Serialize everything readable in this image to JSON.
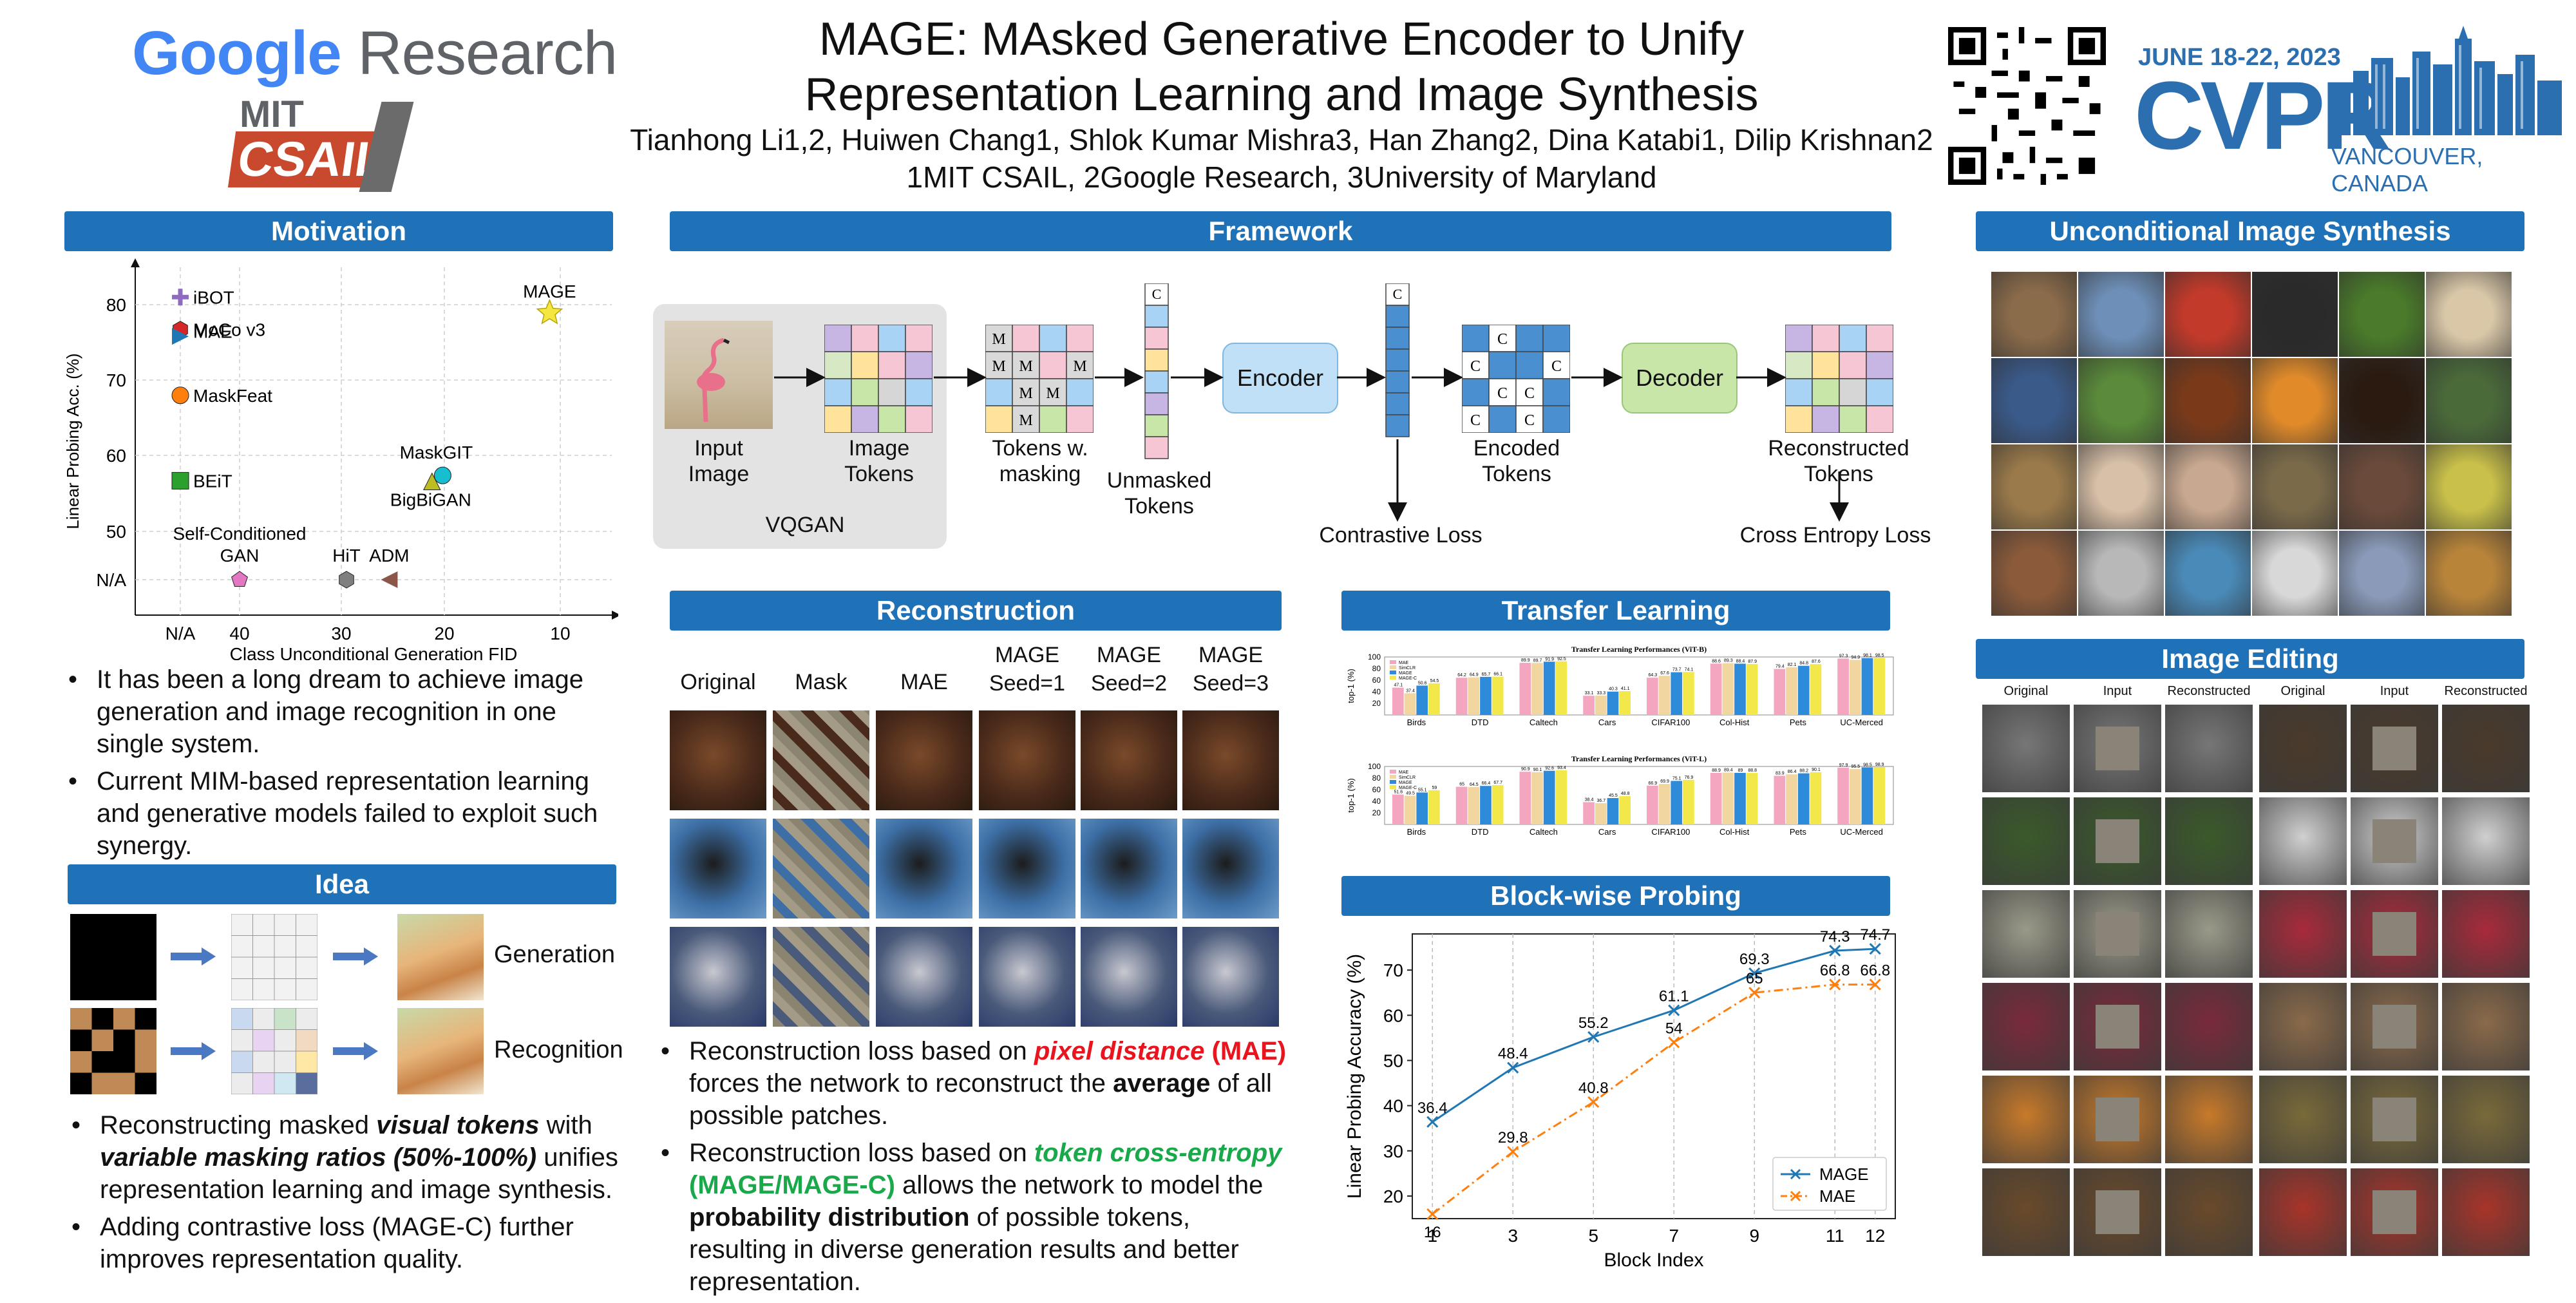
{
  "header": {
    "logo_google": "Google",
    "logo_research": "Research",
    "logo_mit": "MIT",
    "logo_csail": "CSAIL",
    "title_line1": "MAGE: MAsked Generative Encoder to Unify",
    "title_line2": "Representation Learning and Image Synthesis",
    "authors": "Tianhong Li1,2, Huiwen Chang1, Shlok Kumar Mishra3, Han Zhang2, Dina Katabi1, Dilip Krishnan2",
    "affiliations": "1MIT CSAIL, 2Google Research, 3University of Maryland",
    "cvpr_dates": "JUNE 18-22, 2023",
    "cvpr_name": "CVPR",
    "cvpr_location": "VANCOUVER, CANADA"
  },
  "sections": {
    "motivation": "Motivation",
    "idea": "Idea",
    "framework": "Framework",
    "reconstruction": "Reconstruction",
    "transfer": "Transfer Learning",
    "blockwise": "Block-wise Probing",
    "uncond": "Unconditional Image Synthesis",
    "editing": "Image Editing"
  },
  "motivation": {
    "bullets": [
      "It has been a long dream to achieve image generation and image recognition in one single system.",
      "Current MIM-based representation learning and generative models failed to exploit such synergy."
    ]
  },
  "idea": {
    "row1_label": "Generation",
    "row2_label": "Recognition",
    "b1_pre": "Reconstructing masked ",
    "b1_em1": "visual tokens",
    "b1_mid": " with ",
    "b1_em2": "variable masking ratios (50%-100%)",
    "b1_post": " unifies representation learning and image synthesis.",
    "b2": "Adding contrastive loss (MAGE-C) further improves representation quality."
  },
  "framework": {
    "input_image": "Input Image",
    "vqgan": "VQGAN",
    "image_tokens": "Image Tokens",
    "tokens_masking": "Tokens w. masking",
    "unmasked_tokens": "Unmasked Tokens",
    "encoder": "Encoder",
    "contrastive_loss": "Contrastive Loss",
    "encoded_tokens": "Encoded Tokens",
    "decoder": "Decoder",
    "reconstructed_tokens": "Reconstructed Tokens",
    "cross_entropy_loss": "Cross Entropy Loss",
    "mask_letter": "M",
    "cls_letter": "C"
  },
  "reconstruction": {
    "columns": [
      "Original",
      "Mask",
      "MAE",
      "MAGE Seed=1",
      "MAGE Seed=2",
      "MAGE Seed=3"
    ],
    "b1_pre": "Reconstruction loss based on ",
    "b1_em": "pixel distance",
    "b1_tag": " (MAE)",
    "b1_mid": " forces the network to reconstruct the ",
    "b1_strong": "average",
    "b1_post": " of all possible patches.",
    "b2_pre": "Reconstruction loss based on ",
    "b2_em": "token cross-entropy",
    "b2_tag": " (MAGE/MAGE-C)",
    "b2_mid": " allows the network to model the ",
    "b2_strong": "probability distribution",
    "b2_post": " of possible tokens, resulting in diverse generation results and better representation."
  },
  "transfer": {
    "chart1_title": "Transfer Learning Performances (ViT-B)",
    "chart2_title": "Transfer Learning Performances (ViT-L)"
  },
  "editing": {
    "cols": [
      "Original",
      "Input",
      "Reconstructed",
      "Original",
      "Input",
      "Reconstructed"
    ]
  },
  "colors": {
    "accent": "#1f72b8",
    "mage_line": "#1f77b4",
    "mae_line": "#ff7f0e"
  },
  "chart_data": [
    {
      "type": "scatter",
      "xlabel": "Class Unconditional Generation FID",
      "ylabel": "Linear Probing Acc. (%)",
      "x_ticks": [
        "N/A",
        "40",
        "30",
        "20",
        "10"
      ],
      "y_ticks": [
        "N/A",
        "50",
        "60",
        "70",
        "80"
      ],
      "points": [
        {
          "name": "iBOT",
          "x": "N/A",
          "y": 81.0,
          "marker": "plus",
          "color": "#8e6bbf"
        },
        {
          "name": "MoCo v3",
          "x": "N/A",
          "y": 76.7,
          "marker": "hexagon",
          "color": "#d62728"
        },
        {
          "name": "MAE",
          "x": "N/A",
          "y": 75.8,
          "marker": "triangle-right",
          "color": "#1f77b4"
        },
        {
          "name": "MaskFeat",
          "x": "N/A",
          "y": 68.0,
          "marker": "circle",
          "color": "#ff7f0e"
        },
        {
          "name": "BEiT",
          "x": "N/A",
          "y": 56.7,
          "marker": "square",
          "color": "#2ca02c"
        },
        {
          "name": "MAGE",
          "x": 11,
          "y": 78.9,
          "marker": "star",
          "color": "#f5e642"
        },
        {
          "name": "MaskGIT",
          "x": 21,
          "y": 57.4,
          "marker": "circle",
          "color": "#17becf"
        },
        {
          "name": "BigBiGAN",
          "x": 22,
          "y": 56.6,
          "marker": "triangle-up",
          "color": "#bcbd22"
        },
        {
          "name": "Self-Conditioned GAN",
          "x": 40,
          "y": "N/A",
          "marker": "pentagon",
          "color": "#e377c2"
        },
        {
          "name": "HiT",
          "x": 30,
          "y": "N/A",
          "marker": "hexagon",
          "color": "#7f7f7f"
        },
        {
          "name": "ADM",
          "x": 26,
          "y": "N/A",
          "marker": "triangle-left",
          "color": "#8c564b"
        }
      ]
    },
    {
      "type": "line",
      "xlabel": "Block Index",
      "ylabel": "Linear Probing Accuracy (%)",
      "x": [
        1,
        3,
        5,
        7,
        9,
        11,
        12
      ],
      "ylim": [
        15,
        78
      ],
      "y_ticks": [
        20,
        30,
        40,
        50,
        60,
        70
      ],
      "legend": "bottom-right",
      "series": [
        {
          "name": "MAGE",
          "values": [
            36.4,
            48.4,
            55.2,
            61.1,
            69.3,
            74.3,
            74.7
          ],
          "color": "#1f77b4"
        },
        {
          "name": "MAE",
          "values": [
            16.0,
            29.8,
            40.8,
            54.0,
            65.0,
            66.8,
            66.8
          ],
          "color": "#ff7f0e"
        }
      ]
    },
    {
      "type": "bar",
      "title": "Transfer Learning Performances (ViT-B)",
      "ylabel": "top-1 (%)",
      "y_ticks": [
        20,
        40,
        60,
        80,
        100
      ],
      "categories": [
        "Birds",
        "DTD",
        "Caltech",
        "Cars",
        "CIFAR100",
        "Col-Hist",
        "Pets",
        "UC-Merced"
      ],
      "series": [
        {
          "name": "MAE",
          "values": [
            47.1,
            64.2,
            89.9,
            33.1,
            64.3,
            88.6,
            79.4,
            97.3
          ],
          "color": "#f4a6c0"
        },
        {
          "name": "SimCLR",
          "values": [
            37.4,
            64.9,
            89.7,
            33.3,
            67.6,
            89.3,
            82.1,
            94.9
          ],
          "color": "#f2d6a0"
        },
        {
          "name": "MAGE",
          "values": [
            50.6,
            65.7,
            91.9,
            40.3,
            73.7,
            88.4,
            84.8,
            98.1
          ],
          "color": "#2e8bd9"
        },
        {
          "name": "MAGE-C",
          "values": [
            54.5,
            66.1,
            92.5,
            41.1,
            74.1,
            87.9,
            87.6,
            98.5
          ],
          "color": "#f2e84a"
        }
      ]
    },
    {
      "type": "bar",
      "title": "Transfer Learning Performances (ViT-L)",
      "ylabel": "top-1 (%)",
      "y_ticks": [
        20,
        40,
        60,
        80,
        100
      ],
      "categories": [
        "Birds",
        "DTD",
        "Caltech",
        "Cars",
        "CIFAR100",
        "Col-Hist",
        "Pets",
        "UC-Merced"
      ],
      "series": [
        {
          "name": "MAE",
          "values": [
            51.6,
            65.0,
            90.9,
            38.4,
            66.9,
            88.9,
            83.9,
            97.9
          ],
          "color": "#f4a6c0"
        },
        {
          "name": "SimCLR",
          "values": [
            49.5,
            64.5,
            90.1,
            36.7,
            69.9,
            89.4,
            86.4,
            95.5
          ],
          "color": "#f2d6a0"
        },
        {
          "name": "MAGE",
          "values": [
            55.1,
            66.4,
            92.6,
            45.5,
            75.1,
            89.0,
            88.2,
            98.5
          ],
          "color": "#2e8bd9"
        },
        {
          "name": "MAGE-C",
          "values": [
            59.0,
            67.7,
            93.4,
            48.8,
            76.9,
            88.8,
            90.1,
            98.9
          ],
          "color": "#f2e84a"
        }
      ]
    }
  ]
}
